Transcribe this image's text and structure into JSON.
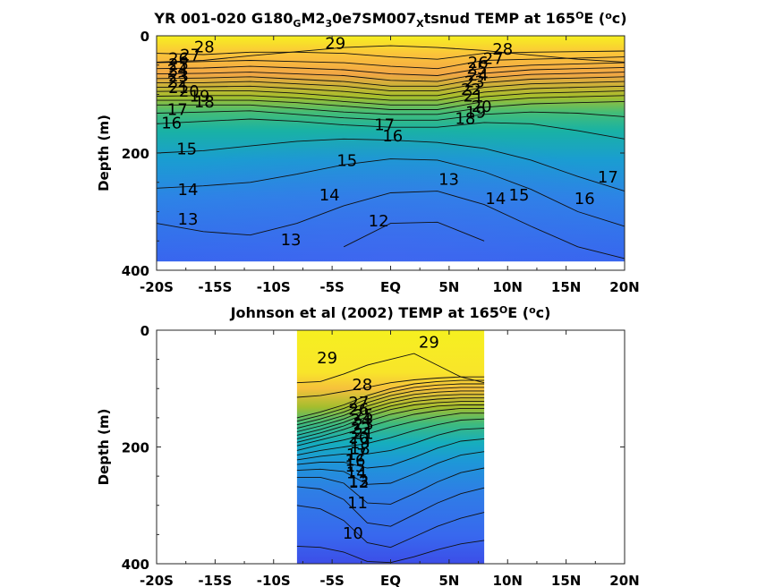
{
  "chart_data": [
    {
      "type": "contour",
      "title": {
        "parts": [
          {
            "t": "YR 001-020 G180"
          },
          {
            "t": "G",
            "sub": true
          },
          {
            "t": "M2"
          },
          {
            "t": "3",
            "sub": true
          },
          {
            "t": "0e7SM007"
          },
          {
            "t": "X",
            "sub": true
          },
          {
            "t": "tsnud TEMP at 165"
          },
          {
            "t": "O",
            "sup": true
          },
          {
            "t": "E ("
          },
          {
            "t": "o",
            "sup": true
          },
          {
            "t": "c)"
          }
        ]
      },
      "ylabel": "Depth (m)",
      "xticks": [
        "-20S",
        "-15S",
        "-10S",
        "-5S",
        "EQ",
        "5N",
        "10N",
        "15N",
        "20N"
      ],
      "xtick_values": [
        -20,
        -15,
        -10,
        -5,
        0,
        5,
        10,
        15,
        20
      ],
      "yticks": [
        "0",
        "200",
        "400"
      ],
      "ytick_values": [
        0,
        200,
        400
      ],
      "xlim": [
        -20,
        20
      ],
      "ylim": [
        0,
        400
      ],
      "y_reversed": true,
      "data_extent": {
        "x": [
          -20,
          20
        ],
        "depth": [
          0,
          385
        ]
      },
      "colormap": "parula",
      "color_range": [
        10,
        30
      ],
      "isotherm_depths": [
        {
          "temp": 29,
          "depth": [
            45,
            42,
            34,
            27,
            20,
            17,
            20,
            25,
            33,
            40,
            45
          ]
        },
        {
          "temp": 28,
          "depth": [
            30,
            32,
            28,
            28,
            30,
            36,
            40,
            30,
            28,
            27,
            26
          ]
        },
        {
          "temp": 27,
          "depth": [
            46,
            44,
            42,
            44,
            46,
            52,
            56,
            42,
            40,
            38,
            36
          ]
        },
        {
          "temp": 26,
          "depth": [
            56,
            55,
            52,
            55,
            58,
            65,
            68,
            55,
            50,
            48,
            46
          ]
        },
        {
          "temp": 25,
          "depth": [
            65,
            64,
            62,
            65,
            68,
            76,
            78,
            64,
            58,
            56,
            54
          ]
        },
        {
          "temp": 24,
          "depth": [
            73,
            72,
            70,
            74,
            78,
            86,
            86,
            72,
            66,
            64,
            62
          ]
        },
        {
          "temp": 23,
          "depth": [
            80,
            80,
            78,
            82,
            86,
            94,
            94,
            80,
            74,
            72,
            70
          ]
        },
        {
          "temp": 22,
          "depth": [
            88,
            87,
            86,
            90,
            95,
            102,
            102,
            88,
            82,
            80,
            78
          ]
        },
        {
          "temp": 21,
          "depth": [
            95,
            94,
            94,
            98,
            104,
            110,
            110,
            96,
            90,
            88,
            86
          ]
        },
        {
          "temp": 20,
          "depth": [
            103,
            102,
            102,
            106,
            112,
            118,
            118,
            104,
            98,
            96,
            94
          ]
        },
        {
          "temp": 19,
          "depth": [
            110,
            110,
            110,
            114,
            120,
            126,
            126,
            112,
            106,
            104,
            102
          ]
        },
        {
          "temp": 18,
          "depth": [
            118,
            118,
            118,
            124,
            130,
            134,
            134,
            122,
            116,
            114,
            112
          ]
        },
        {
          "temp": 17,
          "depth": [
            132,
            130,
            128,
            134,
            140,
            144,
            144,
            134,
            130,
            132,
            138
          ]
        },
        {
          "temp": 16,
          "depth": [
            150,
            146,
            142,
            146,
            152,
            156,
            156,
            148,
            150,
            162,
            176
          ]
        },
        {
          "temp": 15,
          "depth": [
            200,
            196,
            188,
            180,
            176,
            178,
            182,
            192,
            212,
            240,
            265
          ]
        },
        {
          "temp": 14,
          "depth": [
            260,
            256,
            250,
            236,
            220,
            210,
            212,
            232,
            262,
            300,
            325
          ]
        },
        {
          "temp": 13,
          "depth": [
            320,
            334,
            340,
            320,
            290,
            268,
            265,
            288,
            325,
            360,
            380
          ]
        },
        {
          "temp": 12,
          "depth": [
            null,
            null,
            null,
            null,
            360,
            320,
            318,
            350,
            null,
            null,
            null
          ]
        }
      ],
      "contour_labels": [
        {
          "text": "29",
          "x": -5.6,
          "depth": 22
        },
        {
          "text": "28",
          "x": -16.8,
          "depth": 28
        },
        {
          "text": "27",
          "x": -18.0,
          "depth": 42
        },
        {
          "text": "26",
          "x": -19.0,
          "depth": 48
        },
        {
          "text": "25",
          "x": -19.0,
          "depth": 58
        },
        {
          "text": "24",
          "x": -19.1,
          "depth": 68
        },
        {
          "text": "23",
          "x": -19.0,
          "depth": 78
        },
        {
          "text": "22",
          "x": -19.1,
          "depth": 88
        },
        {
          "text": "21",
          "x": -19.0,
          "depth": 98
        },
        {
          "text": "20",
          "x": -18.1,
          "depth": 104
        },
        {
          "text": "19",
          "x": -17.2,
          "depth": 112
        },
        {
          "text": "18",
          "x": -16.8,
          "depth": 122
        },
        {
          "text": "17",
          "x": -19.1,
          "depth": 135
        },
        {
          "text": "16",
          "x": -19.6,
          "depth": 158
        },
        {
          "text": "15",
          "x": -18.3,
          "depth": 202
        },
        {
          "text": "14",
          "x": -18.2,
          "depth": 272
        },
        {
          "text": "13",
          "x": -18.2,
          "depth": 322
        },
        {
          "text": "13",
          "x": -9.4,
          "depth": 357
        },
        {
          "text": "14",
          "x": -6.1,
          "depth": 281
        },
        {
          "text": "15",
          "x": -4.6,
          "depth": 222
        },
        {
          "text": "17",
          "x": -1.4,
          "depth": 161
        },
        {
          "text": "16",
          "x": -0.7,
          "depth": 180
        },
        {
          "text": "12",
          "x": -1.9,
          "depth": 325
        },
        {
          "text": "13",
          "x": 4.1,
          "depth": 254
        },
        {
          "text": "14",
          "x": 8.1,
          "depth": 287
        },
        {
          "text": "15",
          "x": 10.1,
          "depth": 281
        },
        {
          "text": "16",
          "x": 15.7,
          "depth": 287
        },
        {
          "text": "17",
          "x": 17.7,
          "depth": 250
        },
        {
          "text": "28",
          "x": 8.7,
          "depth": 32
        },
        {
          "text": "27",
          "x": 7.9,
          "depth": 48
        },
        {
          "text": "26",
          "x": 6.6,
          "depth": 55
        },
        {
          "text": "25",
          "x": 6.5,
          "depth": 65
        },
        {
          "text": "24",
          "x": 6.6,
          "depth": 76
        },
        {
          "text": "23",
          "x": 6.3,
          "depth": 88
        },
        {
          "text": "22",
          "x": 6.0,
          "depth": 101
        },
        {
          "text": "21",
          "x": 6.2,
          "depth": 112
        },
        {
          "text": "20",
          "x": 6.9,
          "depth": 130
        },
        {
          "text": "19",
          "x": 6.4,
          "depth": 140
        },
        {
          "text": "18",
          "x": 5.5,
          "depth": 150
        }
      ]
    },
    {
      "type": "contour",
      "title": {
        "parts": [
          {
            "t": "Johnson et al (2002) TEMP at 165"
          },
          {
            "t": "O",
            "sup": true
          },
          {
            "t": "E ("
          },
          {
            "t": "o",
            "sup": true
          },
          {
            "t": "c)"
          }
        ]
      },
      "ylabel": "Depth (m)",
      "xticks": [
        "-20S",
        "-15S",
        "-10S",
        "-5S",
        "EQ",
        "5N",
        "10N",
        "15N",
        "20N"
      ],
      "xtick_values": [
        -20,
        -15,
        -10,
        -5,
        0,
        5,
        10,
        15,
        20
      ],
      "yticks": [
        "0",
        "200",
        "400"
      ],
      "ytick_values": [
        0,
        200,
        400
      ],
      "xlim": [
        -20,
        20
      ],
      "ylim": [
        0,
        400
      ],
      "y_reversed": true,
      "data_extent": {
        "x": [
          -8,
          8
        ],
        "depth": [
          0,
          400
        ]
      },
      "colormap": "parula",
      "color_range": [
        10,
        30
      ],
      "isotherm_depths": [
        {
          "temp": 29,
          "depth": [
            90,
            88,
            75,
            60,
            50,
            40,
            60,
            80,
            90
          ]
        },
        {
          "temp": 28,
          "depth": [
            115,
            112,
            105,
            98,
            90,
            85,
            82,
            80,
            80
          ]
        },
        {
          "temp": 27,
          "depth": [
            150,
            140,
            128,
            112,
            100,
            92,
            88,
            86,
            86
          ]
        },
        {
          "temp": 26,
          "depth": [
            156,
            146,
            134,
            118,
            106,
            98,
            94,
            92,
            92
          ]
        },
        {
          "temp": 25,
          "depth": [
            162,
            152,
            140,
            124,
            112,
            104,
            100,
            98,
            98
          ]
        },
        {
          "temp": 24,
          "depth": [
            168,
            158,
            146,
            130,
            118,
            110,
            106,
            104,
            104
          ]
        },
        {
          "temp": 23,
          "depth": [
            174,
            164,
            152,
            136,
            124,
            116,
            112,
            110,
            110
          ]
        },
        {
          "temp": 22,
          "depth": [
            180,
            170,
            158,
            142,
            130,
            122,
            118,
            116,
            116
          ]
        },
        {
          "temp": 21,
          "depth": [
            186,
            176,
            164,
            148,
            136,
            128,
            124,
            122,
            122
          ]
        },
        {
          "temp": 20,
          "depth": [
            192,
            182,
            170,
            156,
            144,
            136,
            130,
            128,
            128
          ]
        },
        {
          "temp": 19,
          "depth": [
            198,
            188,
            178,
            166,
            154,
            144,
            138,
            134,
            134
          ]
        },
        {
          "temp": 18,
          "depth": [
            206,
            196,
            188,
            178,
            166,
            156,
            148,
            142,
            142
          ]
        },
        {
          "temp": 17,
          "depth": [
            214,
            206,
            200,
            194,
            184,
            172,
            162,
            154,
            152
          ]
        },
        {
          "temp": 16,
          "depth": [
            222,
            216,
            212,
            212,
            206,
            194,
            180,
            170,
            168
          ]
        },
        {
          "temp": 15,
          "depth": [
            230,
            226,
            226,
            236,
            232,
            218,
            202,
            190,
            186
          ]
        },
        {
          "temp": 14,
          "depth": [
            240,
            238,
            242,
            264,
            262,
            246,
            228,
            214,
            208
          ]
        },
        {
          "temp": 13,
          "depth": [
            252,
            252,
            262,
            296,
            298,
            280,
            260,
            244,
            236
          ]
        },
        {
          "temp": 12,
          "depth": [
            268,
            272,
            290,
            330,
            336,
            316,
            296,
            280,
            270
          ]
        },
        {
          "temp": 11,
          "depth": [
            300,
            306,
            326,
            364,
            372,
            354,
            336,
            322,
            312
          ]
        },
        {
          "temp": 10,
          "depth": [
            370,
            372,
            380,
            396,
            398,
            388,
            376,
            366,
            360
          ]
        }
      ],
      "contour_labels": [
        {
          "text": "29",
          "x": -6.3,
          "depth": 57
        },
        {
          "text": "29",
          "x": 2.4,
          "depth": 30
        },
        {
          "text": "28",
          "x": -3.3,
          "depth": 103
        },
        {
          "text": "27",
          "x": -3.6,
          "depth": 133
        },
        {
          "text": "26",
          "x": -3.6,
          "depth": 145
        },
        {
          "text": "25",
          "x": -3.2,
          "depth": 155
        },
        {
          "text": "24",
          "x": -3.4,
          "depth": 163
        },
        {
          "text": "23",
          "x": -3.2,
          "depth": 170
        },
        {
          "text": "22",
          "x": -3.4,
          "depth": 178
        },
        {
          "text": "21",
          "x": -3.2,
          "depth": 186
        },
        {
          "text": "20",
          "x": -3.6,
          "depth": 193
        },
        {
          "text": "19",
          "x": -3.5,
          "depth": 202
        },
        {
          "text": "18",
          "x": -3.5,
          "depth": 212
        },
        {
          "text": "17",
          "x": -3.8,
          "depth": 222
        },
        {
          "text": "16",
          "x": -3.9,
          "depth": 232
        },
        {
          "text": "15",
          "x": -3.9,
          "depth": 242
        },
        {
          "text": "14",
          "x": -3.8,
          "depth": 254
        },
        {
          "text": "13",
          "x": -3.6,
          "depth": 268
        },
        {
          "text": "12",
          "x": -3.6,
          "depth": 270
        },
        {
          "text": "11",
          "x": -3.7,
          "depth": 305
        },
        {
          "text": "10",
          "x": -4.1,
          "depth": 357
        }
      ]
    }
  ]
}
